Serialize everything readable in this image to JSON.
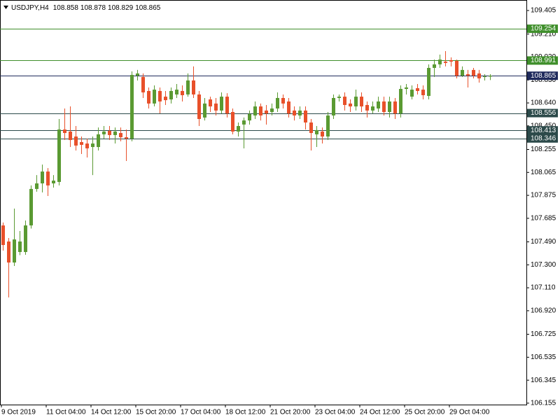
{
  "chart_data": {
    "type": "candlestick",
    "symbol": "USDJPY,H4",
    "categories": [
      "9 Oct 2019",
      null,
      null,
      null,
      null,
      null,
      null,
      null,
      "11 Oct 04:00",
      null,
      null,
      null,
      null,
      null,
      null,
      null,
      "14 Oct 12:00",
      null,
      null,
      null,
      null,
      null,
      null,
      null,
      "15 Oct 20:00",
      null,
      null,
      null,
      null,
      null,
      null,
      null,
      "17 Oct 04:00",
      null,
      null,
      null,
      null,
      null,
      null,
      null,
      "18 Oct 12:00",
      null,
      null,
      null,
      null,
      null,
      null,
      null,
      "21 Oct 20:00",
      null,
      null,
      null,
      null,
      null,
      null,
      null,
      "23 Oct 04:00",
      null,
      null,
      null,
      null,
      null,
      null,
      null,
      "24 Oct 12:00",
      null,
      null,
      null,
      null,
      null,
      null,
      null,
      "25 Oct 20:00",
      null,
      null,
      null,
      null,
      null,
      null,
      null,
      "29 Oct 04:00",
      null,
      null,
      null,
      null,
      null,
      null,
      null
    ],
    "open": [
      107.626,
      107.493,
      107.319,
      107.406,
      107.406,
      107.626,
      107.928,
      107.974,
      108.072,
      107.974,
      107.986,
      108.42,
      108.403,
      108.362,
      108.316,
      108.304,
      108.275,
      108.275,
      108.38,
      108.409,
      108.374,
      108.391,
      108.356,
      108.345,
      108.866,
      108.855,
      108.739,
      108.635,
      108.739,
      108.692,
      108.669,
      108.71,
      108.739,
      108.71,
      108.826,
      108.71,
      108.519,
      108.669,
      108.635,
      108.577,
      108.692,
      108.565,
      108.403,
      108.461,
      108.495,
      108.536,
      108.611,
      108.577,
      108.565,
      108.594,
      108.681,
      108.652,
      108.577,
      108.536,
      108.577,
      108.478,
      108.38,
      108.403,
      108.362,
      108.536,
      108.681,
      108.692,
      108.635,
      108.611,
      108.692,
      108.623,
      108.577,
      108.594,
      108.652,
      108.565,
      108.652,
      108.553,
      108.756,
      108.692,
      108.762,
      108.75,
      108.698,
      108.93,
      108.959,
      108.982,
      108.994,
      108.988,
      108.866,
      108.878,
      108.913,
      108.884,
      108.855,
      108.858
    ],
    "high": [
      107.65,
      107.522,
      107.765,
      107.58,
      107.667,
      107.957,
      108.043,
      108.13,
      108.101,
      108.043,
      108.507,
      108.594,
      108.611,
      108.449,
      108.362,
      108.345,
      108.362,
      108.437,
      108.449,
      108.449,
      108.437,
      108.437,
      108.42,
      108.901,
      108.913,
      108.884,
      108.768,
      108.785,
      108.768,
      108.739,
      108.768,
      108.797,
      108.785,
      108.884,
      108.942,
      108.739,
      108.681,
      108.692,
      108.681,
      108.727,
      108.721,
      108.594,
      108.478,
      108.519,
      108.577,
      108.652,
      108.635,
      108.623,
      108.635,
      108.727,
      108.71,
      108.681,
      108.611,
      108.611,
      108.611,
      108.507,
      108.449,
      108.437,
      108.565,
      108.71,
      108.71,
      108.727,
      108.669,
      108.75,
      108.727,
      108.652,
      108.652,
      108.692,
      108.692,
      108.692,
      108.681,
      108.785,
      108.797,
      108.785,
      108.797,
      108.785,
      108.959,
      108.999,
      109.04,
      109.069,
      109.017,
      108.999,
      108.942,
      108.913,
      108.93,
      108.913,
      108.878,
      108.878
    ],
    "low": [
      107.418,
      107.03,
      107.29,
      107.38,
      107.383,
      107.6,
      107.905,
      107.899,
      107.87,
      107.939,
      107.957,
      108.333,
      108.275,
      108.246,
      108.217,
      108.188,
      108.043,
      108.246,
      108.345,
      108.333,
      108.304,
      108.322,
      108.159,
      108.322,
      108.826,
      108.681,
      108.594,
      108.611,
      108.553,
      108.623,
      108.635,
      108.681,
      108.652,
      108.692,
      108.681,
      108.449,
      108.495,
      108.565,
      108.536,
      108.553,
      108.519,
      108.38,
      108.362,
      108.264,
      108.461,
      108.507,
      108.495,
      108.461,
      108.536,
      108.565,
      108.594,
      108.519,
      108.495,
      108.507,
      108.42,
      108.246,
      108.275,
      108.304,
      108.333,
      108.507,
      108.652,
      108.577,
      108.565,
      108.577,
      108.565,
      108.519,
      108.553,
      108.565,
      108.536,
      108.519,
      108.507,
      108.519,
      108.71,
      108.669,
      108.71,
      108.669,
      108.669,
      108.855,
      108.93,
      108.942,
      108.942,
      108.843,
      108.855,
      108.768,
      108.843,
      108.808,
      108.826,
      108.829
    ],
    "close": [
      107.464,
      107.319,
      107.51,
      107.493,
      107.626,
      107.928,
      107.974,
      108.072,
      107.957,
      107.997,
      108.42,
      108.391,
      108.333,
      108.287,
      108.293,
      108.264,
      108.304,
      108.38,
      108.403,
      108.374,
      108.403,
      108.356,
      108.345,
      108.872,
      108.884,
      108.727,
      108.635,
      108.75,
      108.652,
      108.663,
      108.739,
      108.75,
      108.704,
      108.826,
      108.71,
      108.507,
      108.635,
      108.611,
      108.577,
      108.692,
      108.553,
      108.403,
      108.449,
      108.495,
      108.548,
      108.611,
      108.536,
      108.553,
      108.594,
      108.681,
      108.635,
      108.553,
      108.536,
      108.577,
      108.478,
      108.391,
      108.415,
      108.362,
      108.536,
      108.681,
      108.692,
      108.623,
      108.611,
      108.692,
      108.611,
      108.577,
      108.611,
      108.652,
      108.565,
      108.652,
      108.553,
      108.756,
      108.768,
      108.75,
      108.739,
      108.704,
      108.93,
      108.959,
      108.999,
      108.971,
      108.982,
      108.866,
      108.913,
      108.866,
      108.866,
      108.843,
      108.86,
      108.865
    ],
    "up_color": "#5a9a32",
    "down_color": "#e8502a",
    "ylim": [
      106.143,
      109.492
    ],
    "yticks": [
      109.405,
      {
        "value": 109.21,
        "label": "109.210"
      },
      {
        "value": 109.02,
        "label": "109.020"
      },
      {
        "value": 108.83,
        "label": "108.830"
      },
      {
        "value": 108.64,
        "label": "108.640"
      },
      {
        "value": 108.45,
        "label": "108.450"
      },
      108.255,
      108.065,
      107.875,
      107.685,
      {
        "value": 107.49,
        "label": "107.490"
      },
      {
        "value": 107.3,
        "label": "107.300"
      },
      {
        "value": 107.11,
        "label": "107.110"
      },
      {
        "value": 106.92,
        "label": "106.920"
      },
      106.725,
      106.535,
      106.345,
      106.155
    ],
    "levels": [
      {
        "value": 109.254,
        "color": "#3f8f2b"
      },
      {
        "value": 108.991,
        "color": "#3f8f2b"
      },
      {
        "value": 108.865,
        "color": "#1f2a5c"
      },
      {
        "value": 108.556,
        "color": "#2c4a4a"
      },
      {
        "value": 108.413,
        "color": "#2c4a4a"
      },
      {
        "value": 108.346,
        "color": "#2c4a4a"
      }
    ],
    "grid": false
  }
}
